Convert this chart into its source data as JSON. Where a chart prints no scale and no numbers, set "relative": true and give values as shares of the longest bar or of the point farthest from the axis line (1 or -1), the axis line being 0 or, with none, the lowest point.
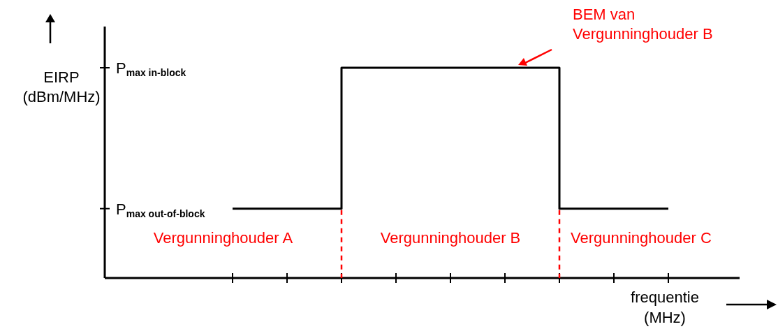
{
  "chart_data": {
    "type": "step",
    "relative": true,
    "xlabel": "frequentie (MHz)",
    "categories": [
      null,
      null,
      null,
      null,
      null,
      null,
      null,
      null,
      null
    ],
    "series": [
      {
        "color": "#000000",
        "values": [
          0.33,
          0.33,
          1,
          1,
          1,
          1,
          0.33,
          0.33,
          0.33
        ]
      }
    ],
    "annotations": [
      "P$_{max in-block}$",
      "P$_{max out-of-block}$",
      "Vergunninghouder A",
      "Vergunninghouder B",
      "Vergunninghouder C",
      "BEM van Vergunninghouder B",
      "EIRP (dBm/MHz)"
    ],
    "line_style": "solid"
  }
}
